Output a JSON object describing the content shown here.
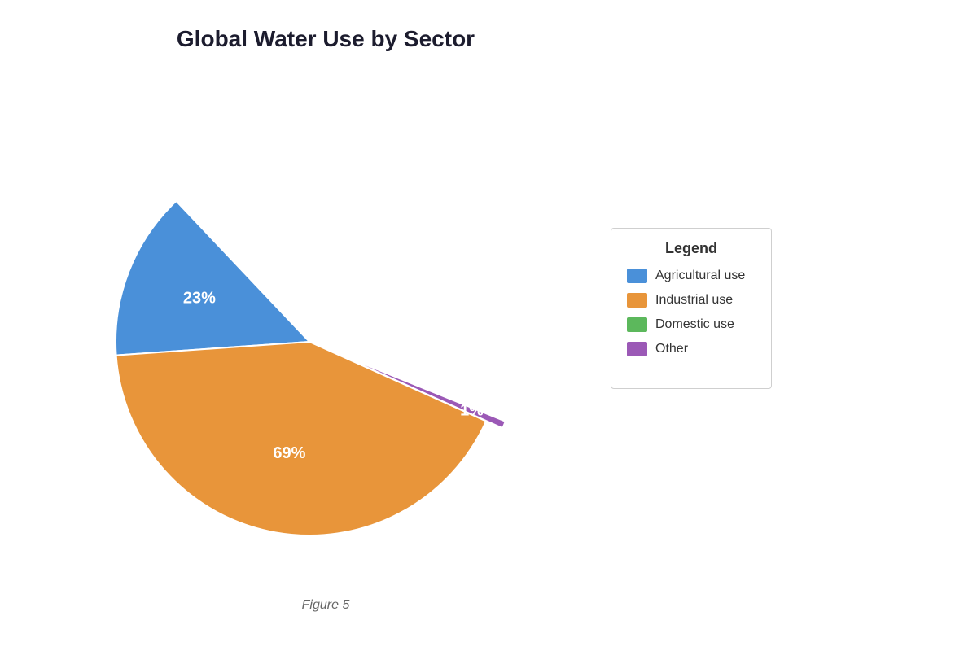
{
  "chart_data": {
    "type": "pie",
    "title": "Global Water Use by Sector",
    "categories": [
      "Agricultural use",
      "Industrial use",
      "Domestic use",
      "Other"
    ],
    "values": [
      23,
      69,
      0,
      1
    ],
    "colors": [
      "#4a90d9",
      "#e8953a",
      "#5cb85c",
      "#9b59b6"
    ],
    "labels": [
      "23%",
      "69%",
      "",
      "1%"
    ],
    "exploded": "Other",
    "legend": {
      "title": "Legend",
      "placement": "right"
    }
  },
  "caption": "Figure 5"
}
